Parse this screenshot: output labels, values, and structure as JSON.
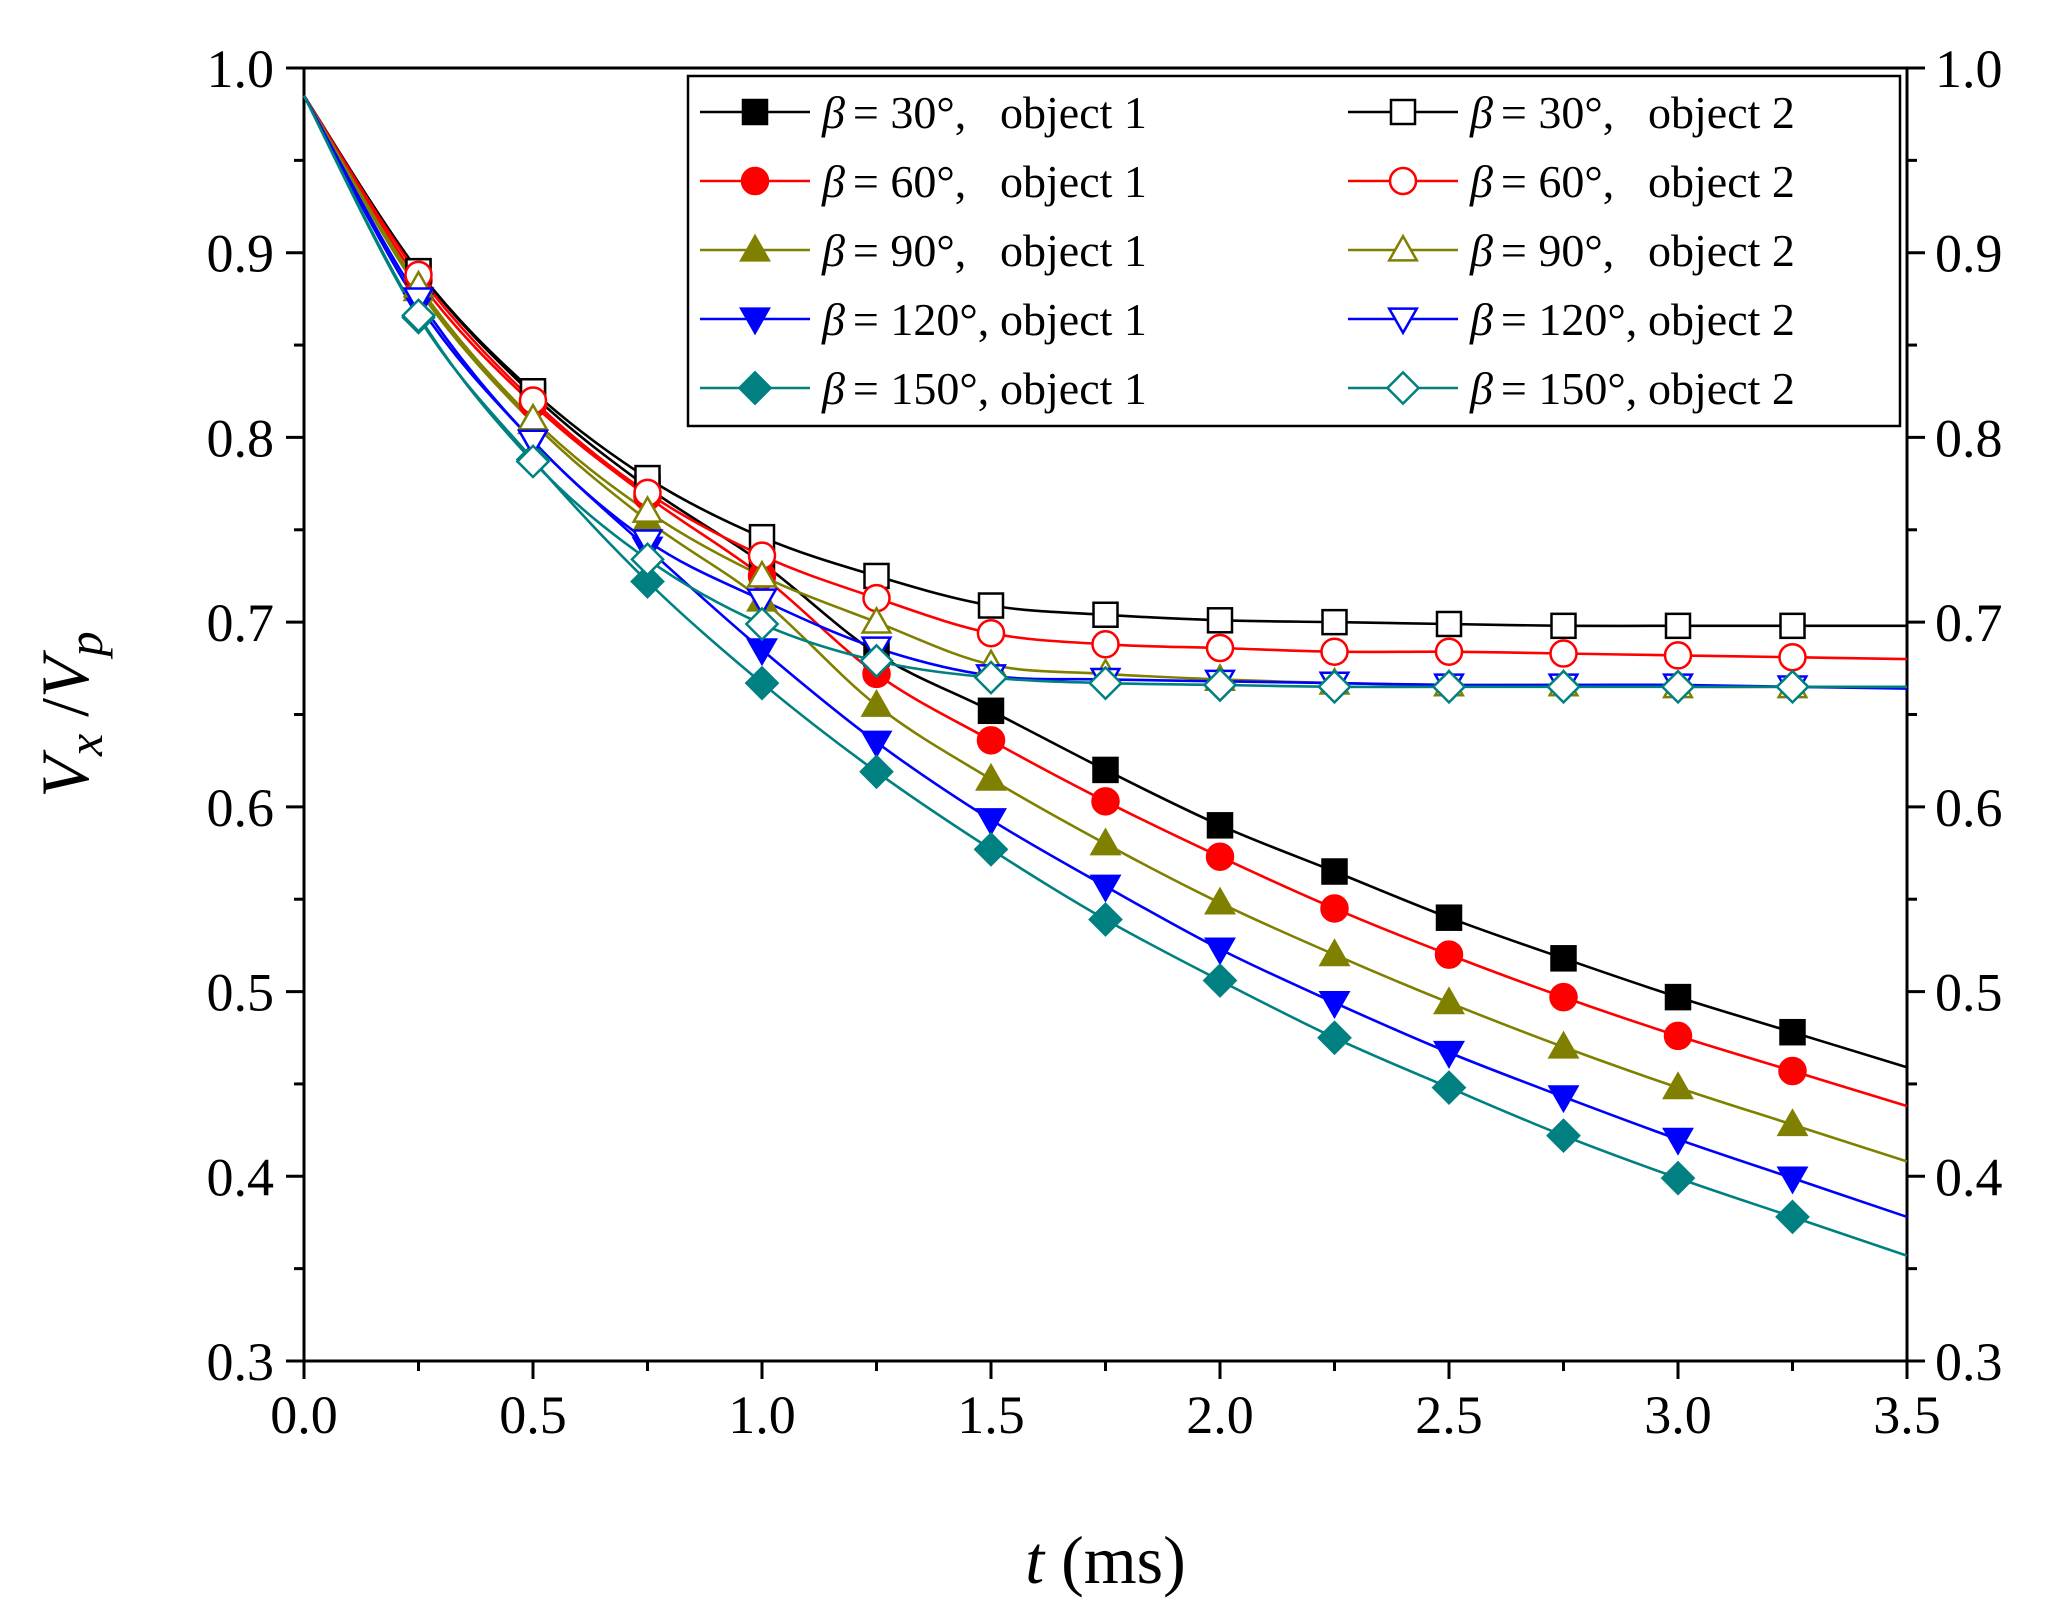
{
  "chart_data": {
    "type": "line",
    "title": "",
    "xlabel": {
      "var": "t",
      "unit": " (ms)"
    },
    "ylabel": {
      "v1": "V",
      "s1": "x",
      "sep": " /",
      "v2": "V",
      "s2": "p"
    },
    "xlim": [
      0.0,
      3.5
    ],
    "ylim": [
      0.3,
      1.0
    ],
    "x_ticks": [
      "0.0",
      "0.5",
      "1.0",
      "1.5",
      "2.0",
      "2.5",
      "3.0",
      "3.5"
    ],
    "y_ticks": [
      "0.3",
      "0.4",
      "0.5",
      "0.6",
      "0.7",
      "0.8",
      "0.9",
      "1.0"
    ],
    "y_ticks_right": [
      "0.3",
      "0.4",
      "0.5",
      "0.6",
      "0.7",
      "0.8",
      "0.9",
      "1.0"
    ],
    "legend_position": "top-right",
    "x": [
      0.25,
      0.5,
      0.75,
      1.0,
      1.25,
      1.5,
      1.75,
      2.0,
      2.25,
      2.5,
      2.75,
      3.0,
      3.25
    ],
    "series": [
      {
        "sym": "β",
        "angle": "= 30°,",
        "obj": "object 1",
        "color": "#000000",
        "marker": "square",
        "filled": true,
        "curve": {
          "y0": 0.985,
          "a": 0.2,
          "k": 0.7,
          "ainf": 0.323
        },
        "values": [
          0.89,
          0.823,
          0.773,
          0.732,
          0.683,
          0.652,
          0.62,
          0.59,
          0.565,
          0.54,
          0.518,
          0.497,
          0.478
        ]
      },
      {
        "sym": "β",
        "angle": "= 60°,",
        "obj": "object 1",
        "color": "#ff0000",
        "marker": "circle",
        "filled": true,
        "curve": {
          "y0": 0.985,
          "a": 0.2,
          "k": 0.7,
          "ainf": 0.355
        },
        "values": [
          0.885,
          0.818,
          0.768,
          0.725,
          0.672,
          0.636,
          0.603,
          0.573,
          0.545,
          0.52,
          0.497,
          0.476,
          0.457
        ]
      },
      {
        "sym": "β",
        "angle": "= 90°,",
        "obj": "object 1",
        "color": "#808000",
        "marker": "triangle-up",
        "filled": true,
        "curve": {
          "y0": 0.985,
          "a": 0.21,
          "k": 0.7,
          "ainf": 0.39
        },
        "values": [
          0.88,
          0.808,
          0.755,
          0.712,
          0.655,
          0.615,
          0.58,
          0.548,
          0.52,
          0.494,
          0.47,
          0.448,
          0.428
        ]
      },
      {
        "sym": "β",
        "angle": "= 120°,",
        "obj": "object 1",
        "color": "#0000ff",
        "marker": "triangle-down",
        "filled": true,
        "curve": {
          "y0": 0.985,
          "a": 0.21,
          "k": 0.7,
          "ainf": 0.43
        },
        "values": [
          0.872,
          0.798,
          0.74,
          0.685,
          0.635,
          0.593,
          0.557,
          0.523,
          0.494,
          0.467,
          0.443,
          0.42,
          0.399
        ]
      },
      {
        "sym": "β",
        "angle": "= 150°,",
        "obj": "object 1",
        "color": "#008080",
        "marker": "diamond",
        "filled": true,
        "curve": {
          "y0": 0.985,
          "a": 0.225,
          "k": 0.7,
          "ainf": 0.47
        },
        "values": [
          0.865,
          0.788,
          0.722,
          0.667,
          0.619,
          0.577,
          0.539,
          0.506,
          0.475,
          0.448,
          0.422,
          0.399,
          0.378
        ]
      },
      {
        "sym": "β",
        "angle": "= 30°,",
        "obj": "object 2",
        "color": "#000000",
        "marker": "square",
        "filled": false,
        "curve": {
          "y0": 0.985,
          "a": 0.2,
          "k": 0.7,
          "floor": 0.699
        },
        "values": [
          0.89,
          0.825,
          0.778,
          0.746,
          0.725,
          0.709,
          0.704,
          0.701,
          0.7,
          0.699,
          0.698,
          0.698,
          0.698
        ]
      },
      {
        "sym": "β",
        "angle": "= 60°,",
        "obj": "object 2",
        "color": "#ff0000",
        "marker": "circle",
        "filled": false,
        "curve": {
          "y0": 0.985,
          "a": 0.2,
          "k": 0.7,
          "floor": 0.681
        },
        "values": [
          0.888,
          0.82,
          0.77,
          0.736,
          0.713,
          0.694,
          0.688,
          0.686,
          0.684,
          0.684,
          0.683,
          0.682,
          0.681
        ]
      },
      {
        "sym": "β",
        "angle": "= 90°,",
        "obj": "object 2",
        "color": "#808000",
        "marker": "triangle-up",
        "filled": false,
        "curve": {
          "y0": 0.985,
          "a": 0.21,
          "k": 0.7,
          "floor": 0.665
        },
        "values": [
          0.882,
          0.81,
          0.76,
          0.725,
          0.7,
          0.677,
          0.672,
          0.669,
          0.667,
          0.666,
          0.666,
          0.665,
          0.665
        ]
      },
      {
        "sym": "β",
        "angle": "= 120°,",
        "obj": "object 2",
        "color": "#0000ff",
        "marker": "triangle-down",
        "filled": false,
        "curve": {
          "y0": 0.985,
          "a": 0.21,
          "k": 0.7,
          "floor": 0.666
        },
        "values": [
          0.875,
          0.798,
          0.744,
          0.712,
          0.686,
          0.671,
          0.669,
          0.668,
          0.667,
          0.666,
          0.666,
          0.666,
          0.665
        ]
      },
      {
        "sym": "β",
        "angle": "= 150°,",
        "obj": "object 2",
        "color": "#008080",
        "marker": "diamond",
        "filled": false,
        "curve": {
          "y0": 0.985,
          "a": 0.225,
          "k": 0.7,
          "floor": 0.665
        },
        "values": [
          0.866,
          0.787,
          0.734,
          0.699,
          0.679,
          0.67,
          0.667,
          0.666,
          0.665,
          0.665,
          0.665,
          0.665,
          0.665
        ]
      }
    ]
  }
}
